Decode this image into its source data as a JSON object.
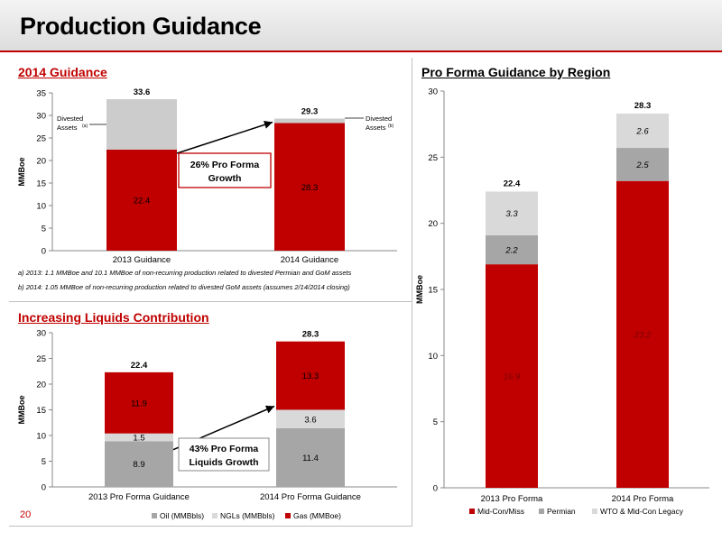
{
  "page": {
    "title": "Production Guidance",
    "page_number": "20"
  },
  "colors": {
    "oil": "#a6a6a6",
    "ngl": "#d9d9d9",
    "gas": "#c00000",
    "mid_con": "#c00000",
    "permian": "#a6a6a6",
    "wto": "#d9d9d9",
    "divested": "#cccccc"
  },
  "chart_data": [
    {
      "id": "guidance2014",
      "type": "bar",
      "title": "2014 Guidance",
      "ylabel": "MMBoe",
      "ylim": [
        0,
        35
      ],
      "yticks": [
        "0",
        "5",
        "10",
        "15",
        "20",
        "25",
        "30",
        "35"
      ],
      "categories": [
        "2013 Guidance",
        "2014 Guidance"
      ],
      "series": [
        {
          "key": "base",
          "values": [
            22.4,
            28.3
          ],
          "labels": [
            "22.4",
            "28.3"
          ]
        },
        {
          "key": "divested",
          "values": [
            11.2,
            1.0
          ]
        }
      ],
      "totals": [
        "33.6",
        "29.3"
      ],
      "annotations": {
        "divested_left": "Divested",
        "divested_left2": "Assets",
        "divested_left_sup": "(a)",
        "divested_right": "Divested",
        "divested_right2": "Assets",
        "divested_right_sup": "(b)",
        "growth_line1": "26% Pro Forma",
        "growth_line2": "Growth"
      },
      "footnotes": [
        "a) 2013: 1.1 MMBoe and 10.1 MMBoe of non-recurring production related to divested Permian and GoM assets",
        "b) 2014: 1.05 MMBoe of non-recurring production related to divested GoM assets (assumes 2/14/2014 closing)"
      ]
    },
    {
      "id": "liquids",
      "type": "bar",
      "title": "Increasing Liquids Contribution",
      "ylabel": "MMBoe",
      "ylim": [
        0,
        30
      ],
      "yticks": [
        "0",
        "5",
        "10",
        "15",
        "20",
        "25",
        "30"
      ],
      "categories": [
        "2013 Pro Forma Guidance",
        "2014 Pro Forma Guidance"
      ],
      "series": [
        {
          "name": "Oil (MMBbls)",
          "values": [
            8.9,
            11.4
          ],
          "labels": [
            "8.9",
            "11.4"
          ]
        },
        {
          "name": "NGLs (MMBbls)",
          "values": [
            1.5,
            3.6
          ],
          "labels": [
            "1.5",
            "3.6"
          ]
        },
        {
          "name": "Gas (MMBoe)",
          "values": [
            11.9,
            13.3
          ],
          "labels": [
            "11.9",
            "13.3"
          ]
        }
      ],
      "totals": [
        "22.4",
        "28.3"
      ],
      "annotations": {
        "growth_line1": "43% Pro Forma",
        "growth_line2": "Liquids Growth"
      },
      "legend_position": "bottom"
    },
    {
      "id": "region",
      "type": "bar",
      "title": "Pro Forma Guidance by Region",
      "ylabel": "MMBoe",
      "ylim": [
        0,
        30
      ],
      "yticks": [
        "0",
        "5",
        "10",
        "15",
        "20",
        "25",
        "30"
      ],
      "categories": [
        "2013 Pro Forma",
        "2014 Pro Forma"
      ],
      "series": [
        {
          "name": "Mid-Con/Miss",
          "values": [
            16.9,
            23.2
          ],
          "labels": [
            "16.9",
            "23.2"
          ]
        },
        {
          "name": "Permian",
          "values": [
            2.2,
            2.5
          ],
          "labels": [
            "2.2",
            "2.5"
          ]
        },
        {
          "name": "WTO & Mid-Con Legacy",
          "values": [
            3.3,
            2.6
          ],
          "labels": [
            "3.3",
            "2.6"
          ]
        }
      ],
      "totals": [
        "22.4",
        "28.3"
      ],
      "legend_position": "bottom"
    }
  ]
}
